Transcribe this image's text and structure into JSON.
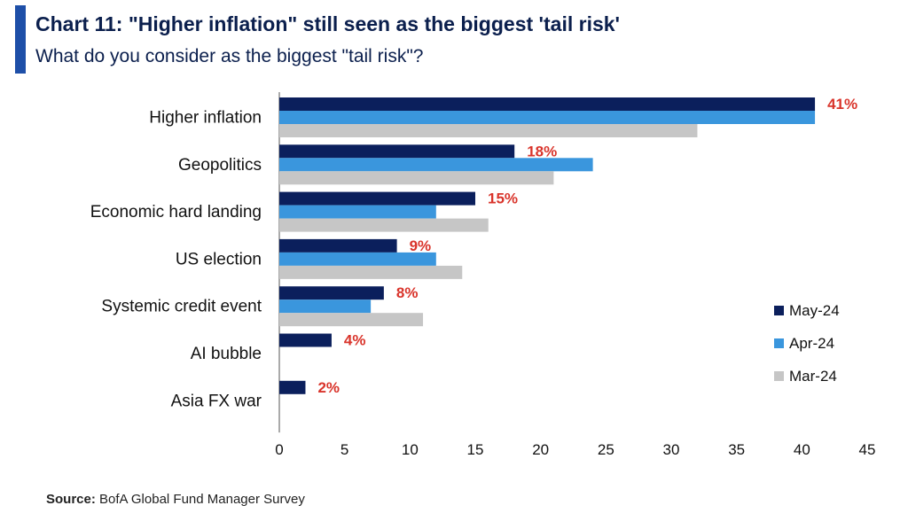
{
  "header": {
    "accent_color": "#1e4fa8",
    "title_prefix": "Chart 11",
    "title_text": ": \"Higher inflation\" still seen as the biggest 'tail risk'",
    "subtitle": "What do you consider as the biggest \"tail risk\"?"
  },
  "source": {
    "label": "Source:",
    "text": " BofA Global Fund Manager Survey"
  },
  "chart_data": {
    "type": "bar",
    "orientation": "horizontal",
    "categories": [
      "Higher inflation",
      "Geopolitics",
      "Economic hard landing",
      "US election",
      "Systemic credit event",
      "AI bubble",
      "Asia FX war"
    ],
    "series": [
      {
        "name": "May-24",
        "color": "#0b1f5c",
        "values": [
          41,
          18,
          15,
          9,
          8,
          4,
          2
        ]
      },
      {
        "name": "Apr-24",
        "color": "#3a96dd",
        "values": [
          41,
          24,
          12,
          12,
          7,
          null,
          null
        ]
      },
      {
        "name": "Mar-24",
        "color": "#c6c6c6",
        "values": [
          32,
          21,
          16,
          14,
          11,
          null,
          null
        ]
      }
    ],
    "data_labels": [
      "41%",
      "18%",
      "15%",
      "9%",
      "8%",
      "4%",
      "2%"
    ],
    "data_label_color": "#d9342b",
    "xlim": [
      0,
      45
    ],
    "xticks": [
      0,
      5,
      10,
      15,
      20,
      25,
      30,
      35,
      40,
      45
    ],
    "grid": false,
    "legend_position": "right"
  }
}
